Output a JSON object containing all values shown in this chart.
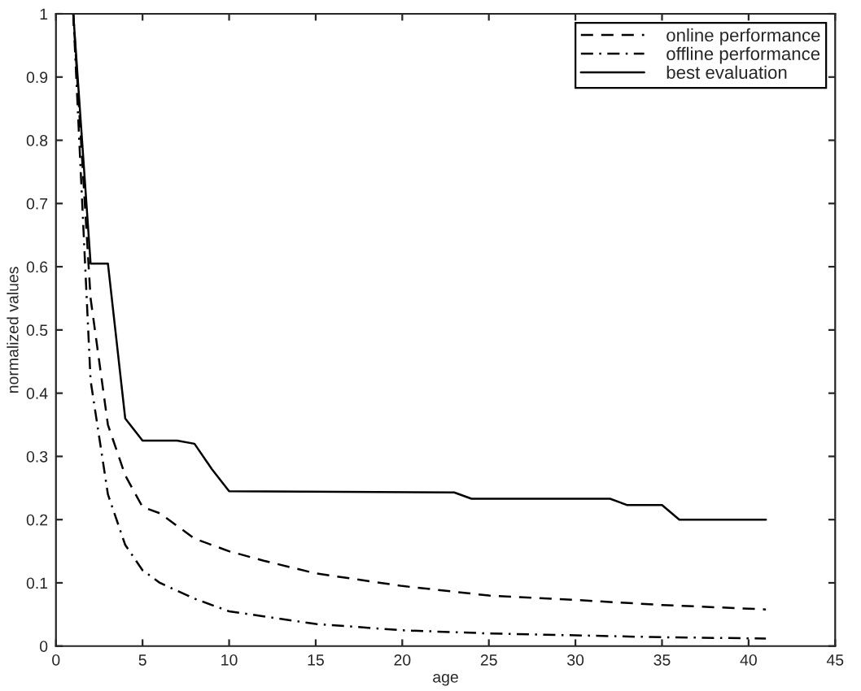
{
  "chart_data": {
    "type": "line",
    "xlabel": "age",
    "ylabel": "normalized values",
    "xlim": [
      0,
      45
    ],
    "xticks": [
      0,
      5,
      10,
      15,
      20,
      25,
      30,
      35,
      40,
      45
    ],
    "ylim": [
      0,
      1
    ],
    "yticks": [
      0,
      0.1,
      0.2,
      0.3,
      0.4,
      0.5,
      0.6,
      0.7,
      0.8,
      0.9,
      1
    ],
    "grid": false,
    "legend": "top right",
    "series": [
      {
        "name": "online performance",
        "color": "#000000",
        "line_style": "dashed",
        "x": [
          1,
          2,
          3,
          4,
          5,
          6,
          7,
          8,
          9,
          10,
          12,
          15,
          20,
          25,
          30,
          35,
          41
        ],
        "values": [
          1.0,
          0.55,
          0.35,
          0.27,
          0.22,
          0.21,
          0.19,
          0.17,
          0.16,
          0.15,
          0.135,
          0.115,
          0.095,
          0.08,
          0.073,
          0.065,
          0.058
        ]
      },
      {
        "name": "offline performance",
        "color": "#000000",
        "line_style": "dashdot",
        "x": [
          1,
          2,
          3,
          4,
          5,
          6,
          8,
          10,
          15,
          20,
          25,
          30,
          35,
          41
        ],
        "values": [
          1.0,
          0.42,
          0.24,
          0.16,
          0.12,
          0.1,
          0.075,
          0.055,
          0.035,
          0.025,
          0.02,
          0.017,
          0.014,
          0.012
        ]
      },
      {
        "name": "best evaluation",
        "color": "#000000",
        "line_style": "solid",
        "x": [
          1,
          2,
          3,
          4,
          5,
          7,
          8,
          9,
          10,
          23,
          24,
          32,
          33,
          35,
          36,
          41
        ],
        "values": [
          1.0,
          0.605,
          0.605,
          0.36,
          0.325,
          0.325,
          0.32,
          0.28,
          0.245,
          0.243,
          0.233,
          0.233,
          0.223,
          0.223,
          0.2,
          0.2
        ]
      }
    ]
  }
}
